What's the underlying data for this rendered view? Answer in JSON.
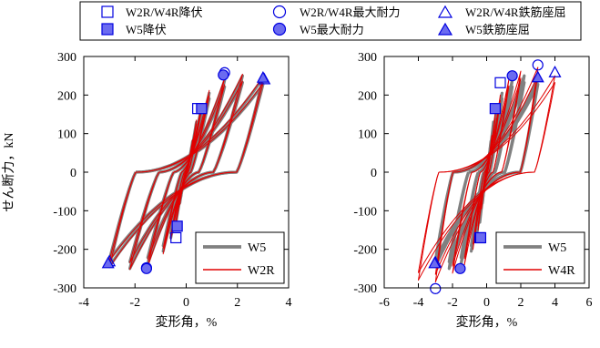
{
  "legend_top": {
    "entries": [
      {
        "label": "W2R/W4R降伏",
        "marker": "square",
        "filled": false
      },
      {
        "label": "W2R/W4R最大耐力",
        "marker": "circle",
        "filled": false
      },
      {
        "label": "W2R/W4R鉄筋座屈",
        "marker": "triangle",
        "filled": false
      },
      {
        "label": "W5降伏",
        "marker": "square",
        "filled": true
      },
      {
        "label": "W5最大耐力",
        "marker": "circle",
        "filled": true
      },
      {
        "label": "W5鉄筋座屈",
        "marker": "triangle",
        "filled": true
      }
    ]
  },
  "colors": {
    "gray": "#808080",
    "red": "#e00000",
    "marker": "#0000e0",
    "marker_fill": "#6b6bf0"
  },
  "chart_data": [
    {
      "type": "line",
      "title": "",
      "xlabel": "変形角，%",
      "ylabel": "せん断力，kN",
      "xlim": [
        -4,
        4
      ],
      "ylim": [
        -300,
        300
      ],
      "xticks": [
        -4,
        -2,
        0,
        2,
        4
      ],
      "yticks": [
        -300,
        -200,
        -100,
        0,
        100,
        200,
        300
      ],
      "xtick_labels": [
        "-4",
        "-2",
        "0",
        "2",
        "4"
      ],
      "ytick_labels": [
        "-300",
        "-200",
        "-100",
        "0",
        "100",
        "200",
        "300"
      ],
      "grid": false,
      "legend_position": "bottom-right",
      "series": [
        {
          "name": "W5",
          "color": "#808080",
          "width": 3.2,
          "envelope_amplitudes": [
            0.15,
            0.25,
            0.4,
            0.6,
            0.9,
            1.5,
            2.2,
            3.0
          ],
          "envelope_forces": [
            45,
            80,
            130,
            170,
            205,
            238,
            250,
            245
          ],
          "negative_forces": [
            -45,
            -80,
            -130,
            -170,
            -205,
            -238,
            -250,
            -245
          ]
        },
        {
          "name": "W2R",
          "color": "#e00000",
          "width": 1.0,
          "envelope_amplitudes": [
            0.15,
            0.25,
            0.4,
            0.6,
            0.9,
            1.5,
            2.2,
            3.0
          ],
          "envelope_forces": [
            48,
            84,
            135,
            175,
            212,
            244,
            254,
            248
          ],
          "negative_forces": [
            -48,
            -84,
            -135,
            -175,
            -212,
            -244,
            -252,
            -247
          ]
        }
      ],
      "markers": {
        "W2R_yield": [
          [
            0.45,
            165
          ],
          [
            -0.4,
            -170
          ]
        ],
        "W2R_max": [
          [
            1.5,
            258
          ],
          [
            -1.55,
            -248
          ]
        ],
        "W2R_buckling": [
          [
            3.05,
            240
          ],
          [
            -3.0,
            -232
          ]
        ],
        "W5_yield": [
          [
            0.6,
            165
          ],
          [
            -0.35,
            -140
          ]
        ],
        "W5_max": [
          [
            1.45,
            252
          ],
          [
            -1.55,
            -250
          ]
        ],
        "W5_buckling": [
          [
            3.0,
            244
          ],
          [
            -3.05,
            -237
          ]
        ]
      }
    },
    {
      "type": "line",
      "title": "",
      "xlabel": "変形角，%",
      "ylabel": "",
      "xlim": [
        -6,
        6
      ],
      "ylim": [
        -300,
        300
      ],
      "xticks": [
        -6,
        -4,
        -2,
        0,
        2,
        4,
        6
      ],
      "yticks": [
        -300,
        -200,
        -100,
        0,
        100,
        200,
        300
      ],
      "xtick_labels": [
        "-6",
        "-4",
        "-2",
        "0",
        "2",
        "4",
        "6"
      ],
      "ytick_labels": [
        "-300",
        "-200",
        "-100",
        "0",
        "100",
        "200",
        "300"
      ],
      "grid": false,
      "legend_position": "bottom-right",
      "series": [
        {
          "name": "W5",
          "color": "#808080",
          "width": 3.2,
          "envelope_amplitudes": [
            0.15,
            0.25,
            0.4,
            0.6,
            0.9,
            1.5,
            2.2,
            3.0
          ],
          "envelope_forces": [
            45,
            80,
            130,
            170,
            205,
            238,
            250,
            245
          ],
          "negative_forces": [
            -45,
            -80,
            -130,
            -170,
            -205,
            -238,
            -250,
            -245
          ]
        },
        {
          "name": "W4R",
          "color": "#e00000",
          "width": 1.0,
          "envelope_amplitudes": [
            0.15,
            0.3,
            0.5,
            0.8,
            1.3,
            2.0,
            3.0,
            4.0
          ],
          "envelope_forces": [
            50,
            95,
            150,
            200,
            240,
            262,
            272,
            250
          ],
          "negative_forces": [
            -50,
            -95,
            -150,
            -200,
            -240,
            -262,
            -285,
            -280
          ]
        }
      ],
      "markers": {
        "W4R_yield": [
          [
            0.8,
            232
          ],
          [
            -0.4,
            -170
          ]
        ],
        "W4R_max": [
          [
            3.0,
            278
          ],
          [
            -3.0,
            -302
          ]
        ],
        "W4R_buckling": [
          [
            4.0,
            258
          ],
          [
            -3.0,
            -235
          ]
        ],
        "W5_yield": [
          [
            0.5,
            165
          ],
          [
            -0.35,
            -170
          ]
        ],
        "W5_max": [
          [
            1.5,
            250
          ],
          [
            -1.55,
            -250
          ]
        ],
        "W5_buckling": [
          [
            3.0,
            245
          ],
          [
            -3.05,
            -237
          ]
        ]
      }
    }
  ]
}
